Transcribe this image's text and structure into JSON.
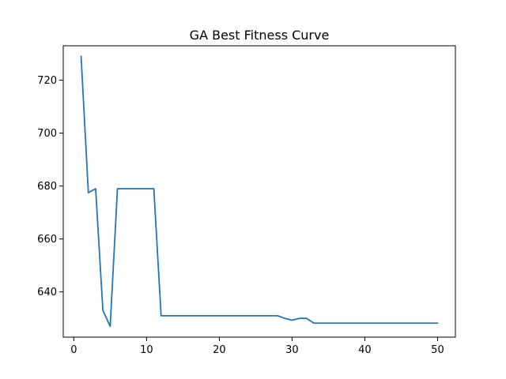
{
  "chart_data": {
    "type": "line",
    "title": "GA Best Fitness Curve",
    "xlabel": "",
    "ylabel": "",
    "xlim": [
      -1.45,
      52.45
    ],
    "ylim": [
      622.9,
      733.0
    ],
    "xticks": [
      0,
      10,
      20,
      30,
      40,
      50
    ],
    "yticks": [
      640,
      660,
      680,
      700,
      720
    ],
    "grid": false,
    "line_color": "#1f77b4",
    "series": [
      {
        "x": [
          1,
          2,
          3,
          4,
          5,
          6,
          7,
          8,
          9,
          10,
          11,
          12,
          13,
          14,
          15,
          16,
          17,
          18,
          19,
          20,
          21,
          22,
          23,
          24,
          25,
          26,
          27,
          28,
          29,
          30,
          31,
          32,
          33,
          34,
          35,
          36,
          37,
          38,
          39,
          40,
          41,
          42,
          43,
          44,
          45,
          46,
          47,
          48,
          49,
          50
        ],
        "values": [
          729,
          677.5,
          679,
          633,
          627,
          679,
          679,
          679,
          679,
          679,
          679,
          631,
          631,
          631,
          631,
          631,
          631,
          631,
          631,
          631,
          631,
          631,
          631,
          631,
          631,
          631,
          631,
          631,
          630,
          629.3,
          630,
          630,
          628.2,
          628.2,
          628.2,
          628.2,
          628.2,
          628.2,
          628.2,
          628.2,
          628.2,
          628.2,
          628.2,
          628.2,
          628.2,
          628.2,
          628.2,
          628.2,
          628.2,
          628.2
        ]
      }
    ]
  }
}
